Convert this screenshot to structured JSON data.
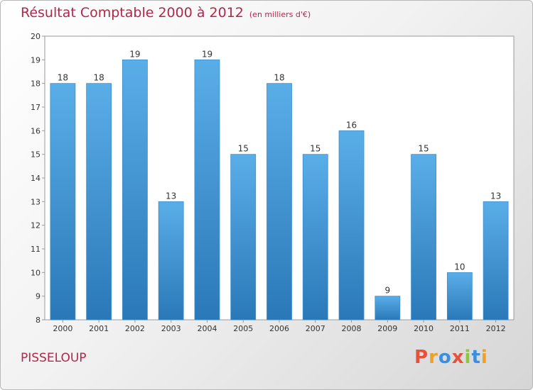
{
  "header": {
    "title": "Résultat Comptable 2000 à 2012",
    "unit": "(en milliers d'€)"
  },
  "footer": {
    "commune": "PISSELOUP",
    "brand_letters": [
      "P",
      "r",
      "o",
      "x",
      "i",
      "t",
      "i"
    ],
    "brand_colors": [
      "#e8503a",
      "#f0a023",
      "#3b8ee0",
      "#e8503a",
      "#8dc63f",
      "#3b8ee0",
      "#f0a023"
    ]
  },
  "colors": {
    "title": "#b0284a",
    "bar_top": "#5aaee8",
    "bar_bottom": "#2a78b8"
  },
  "chart_data": {
    "type": "bar",
    "title": "Résultat Comptable 2000 à 2012",
    "categories": [
      "2000",
      "2001",
      "2002",
      "2003",
      "2004",
      "2005",
      "2006",
      "2007",
      "2008",
      "2009",
      "2010",
      "2011",
      "2012"
    ],
    "values": [
      18,
      18,
      19,
      13,
      19,
      15,
      18,
      15,
      16,
      9,
      15,
      10,
      13
    ],
    "ylim": [
      8,
      20
    ],
    "yticks": [
      8,
      9,
      10,
      11,
      12,
      13,
      14,
      15,
      16,
      17,
      18,
      19,
      20
    ],
    "grid": false,
    "legend": "none"
  }
}
